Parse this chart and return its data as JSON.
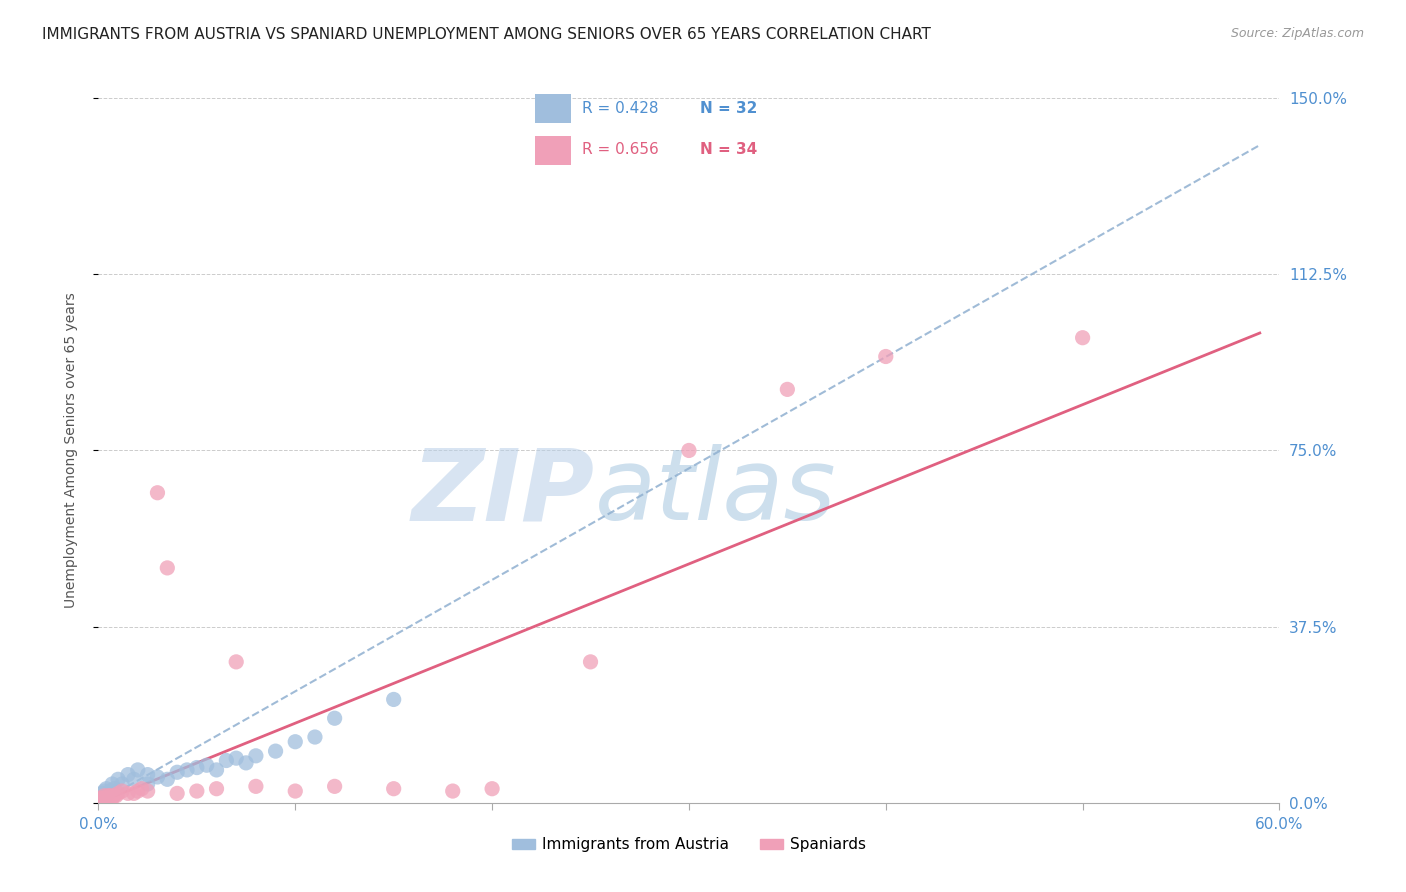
{
  "title": "IMMIGRANTS FROM AUSTRIA VS SPANIARD UNEMPLOYMENT AMONG SENIORS OVER 65 YEARS CORRELATION CHART",
  "source": "Source: ZipAtlas.com",
  "ylabel": "Unemployment Among Seniors over 65 years",
  "xlim": [
    0.0,
    0.6
  ],
  "ylim": [
    0.0,
    1.5
  ],
  "x_ticks": [
    0.0,
    0.1,
    0.2,
    0.3,
    0.4,
    0.5,
    0.6
  ],
  "x_tick_labels": [
    "0.0%",
    "",
    "",
    "",
    "",
    "",
    "60.0%"
  ],
  "y_ticks_right": [
    0.0,
    0.375,
    0.75,
    1.125,
    1.5
  ],
  "y_tick_labels_right": [
    "0.0%",
    "37.5%",
    "75.0%",
    "112.5%",
    "150.0%"
  ],
  "legend_r1": "R = 0.428",
  "legend_n1": "N = 32",
  "legend_r2": "R = 0.656",
  "legend_n2": "N = 34",
  "color_austria": "#a0bedd",
  "color_spaniard": "#f0a0b8",
  "color_austria_line": "#90b0d0",
  "color_spaniard_line": "#e06080",
  "color_blue_text": "#5090d0",
  "color_pink_text": "#e06080",
  "watermark_zip": "ZIP",
  "watermark_atlas": "atlas",
  "watermark_color_zip": "#b8cfe8",
  "watermark_color_atlas": "#90b8d8",
  "austria_x": [
    0.001,
    0.002,
    0.003,
    0.003,
    0.004,
    0.005,
    0.006,
    0.007,
    0.008,
    0.01,
    0.012,
    0.015,
    0.018,
    0.02,
    0.025,
    0.025,
    0.03,
    0.035,
    0.04,
    0.045,
    0.05,
    0.055,
    0.06,
    0.065,
    0.07,
    0.075,
    0.08,
    0.09,
    0.1,
    0.11,
    0.12,
    0.15
  ],
  "austria_y": [
    0.01,
    0.02,
    0.01,
    0.025,
    0.03,
    0.02,
    0.025,
    0.04,
    0.03,
    0.05,
    0.04,
    0.06,
    0.05,
    0.07,
    0.04,
    0.06,
    0.055,
    0.05,
    0.065,
    0.07,
    0.075,
    0.08,
    0.07,
    0.09,
    0.095,
    0.085,
    0.1,
    0.11,
    0.13,
    0.14,
    0.18,
    0.22
  ],
  "spaniard_x": [
    0.001,
    0.002,
    0.003,
    0.003,
    0.004,
    0.005,
    0.006,
    0.007,
    0.008,
    0.009,
    0.01,
    0.012,
    0.015,
    0.018,
    0.02,
    0.022,
    0.025,
    0.03,
    0.035,
    0.04,
    0.05,
    0.06,
    0.07,
    0.08,
    0.1,
    0.12,
    0.15,
    0.18,
    0.2,
    0.25,
    0.3,
    0.35,
    0.4,
    0.5
  ],
  "spaniard_y": [
    0.01,
    0.01,
    0.015,
    0.01,
    0.01,
    0.015,
    0.015,
    0.01,
    0.015,
    0.015,
    0.02,
    0.025,
    0.02,
    0.02,
    0.025,
    0.03,
    0.025,
    0.66,
    0.5,
    0.02,
    0.025,
    0.03,
    0.3,
    0.035,
    0.025,
    0.035,
    0.03,
    0.025,
    0.03,
    0.3,
    0.75,
    0.88,
    0.95,
    0.99
  ],
  "austria_line_x0": 0.0,
  "austria_line_y0": 0.0,
  "austria_line_x1": 0.59,
  "austria_line_y1": 1.4,
  "spaniard_line_x0": 0.0,
  "spaniard_line_y0": 0.0,
  "spaniard_line_x1": 0.59,
  "spaniard_line_y1": 1.0
}
